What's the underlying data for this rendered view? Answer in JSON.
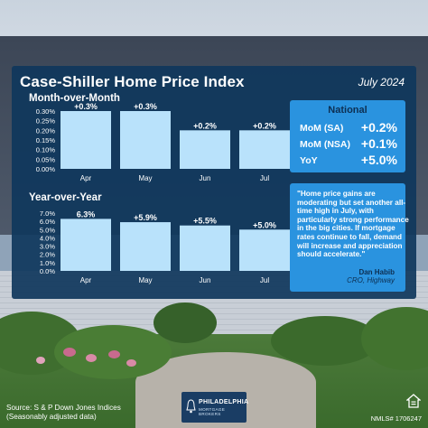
{
  "header": {
    "title": "Case-Shiller Home Price Index",
    "date": "July 2024"
  },
  "chart_data": [
    {
      "type": "bar",
      "title": "Month-over-Month",
      "categories": [
        "Apr",
        "May",
        "Jun",
        "Jul"
      ],
      "values": [
        0.3,
        0.3,
        0.2,
        0.2
      ],
      "data_labels": [
        "+0.3%",
        "+0.3%",
        "+0.2%",
        "+0.2%"
      ],
      "yticks": [
        "0.30%",
        "0.25%",
        "0.20%",
        "0.15%",
        "0.10%",
        "0.05%",
        "0.00%"
      ],
      "ylim": [
        0,
        0.3
      ],
      "grid": false,
      "bar_color": "#b9e2fb"
    },
    {
      "type": "bar",
      "title": "Year-over-Year",
      "categories": [
        "Apr",
        "May",
        "Jun",
        "Jul"
      ],
      "values": [
        6.3,
        5.9,
        5.5,
        5.0
      ],
      "data_labels": [
        "6.3%",
        "+5.9%",
        "+5.5%",
        "+5.0%"
      ],
      "yticks": [
        "7.0%",
        "6.0%",
        "5.0%",
        "4.0%",
        "3.0%",
        "2.0%",
        "1.0%",
        "0.0%"
      ],
      "ylim": [
        0,
        7
      ],
      "grid": false,
      "bar_color": "#b9e2fb"
    }
  ],
  "national": {
    "title": "National",
    "rows": [
      {
        "label": "MoM (SA)",
        "value": "+0.2%"
      },
      {
        "label": "MoM (NSA)",
        "value": "+0.1%"
      },
      {
        "label": "YoY",
        "value": "+5.0%"
      }
    ]
  },
  "quote": {
    "text": "\"Home price gains are moderating but set another all-time high in July, with particularly strong performance in the big cities. If mortgage rates continue to fall, demand will increase and appreciation should accelerate.\"",
    "author": "Dan Habib",
    "role": "CRO, Highway"
  },
  "footer": {
    "source_line1": "Source: S & P Down Jones Indices",
    "source_line2": "(Seasonably adjusted data)",
    "logo_name": "PHILADELPHIA",
    "logo_sub": "MORTGAGE BROKERS",
    "nmls": "NMLS# 1706247"
  },
  "colors": {
    "panel": "#0f375c",
    "card": "#2a93df",
    "bar": "#b9e2fb",
    "text": "#ffffff"
  },
  "icons": {
    "logo": "liberty-bell-icon",
    "equal_housing": "equal-housing-icon"
  }
}
